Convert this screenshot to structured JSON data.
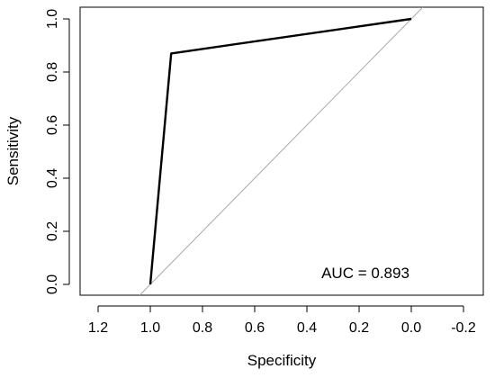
{
  "chart_data": {
    "type": "line",
    "xlabel": "Specificity",
    "ylabel": "Sensitivity",
    "x_reversed": true,
    "xlim": [
      1.25,
      -0.25
    ],
    "ylim": [
      0.0,
      1.0
    ],
    "x_ticks": [
      1.2,
      1.0,
      0.8,
      0.6,
      0.4,
      0.2,
      0.0,
      -0.2
    ],
    "x_tick_labels": [
      "1.2",
      "1.0",
      "0.8",
      "0.6",
      "0.4",
      "0.2",
      "0.0",
      "-0.2"
    ],
    "y_ticks": [
      0.0,
      0.2,
      0.4,
      0.6,
      0.8,
      1.0
    ],
    "y_tick_labels": [
      "0.0",
      "0.2",
      "0.4",
      "0.6",
      "0.8",
      "1.0"
    ],
    "grid": false,
    "series": [
      {
        "role": "roc-curve",
        "color": "#000000",
        "points": [
          {
            "x": 1.0,
            "y": 0.0
          },
          {
            "x": 0.92,
            "y": 0.87
          },
          {
            "x": 0.0,
            "y": 1.0
          }
        ]
      }
    ],
    "reference_line": {
      "color": "#aaaaaa",
      "from": {
        "x": 1.0,
        "y": 0.0
      },
      "to": {
        "x": 0.0,
        "y": 1.0
      }
    },
    "annotation": {
      "text": "AUC = 0.893",
      "position": "bottom-right"
    }
  }
}
